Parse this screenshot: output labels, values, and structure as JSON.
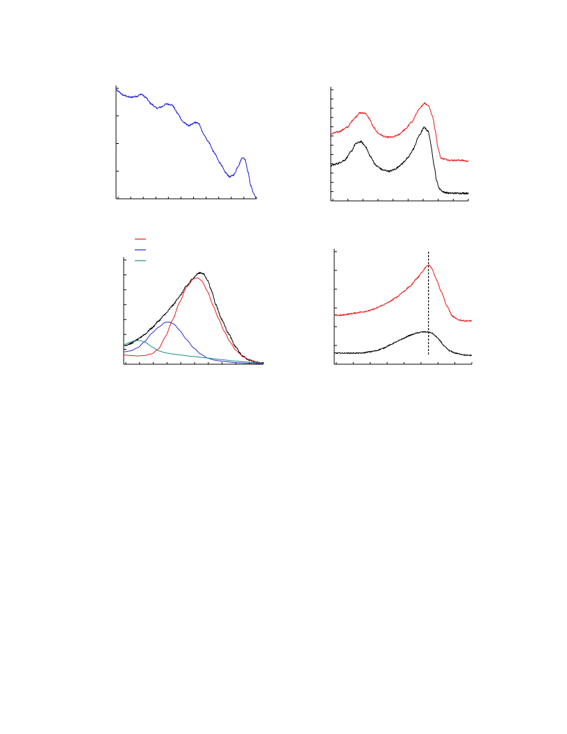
{
  "colors": {
    "blue": "#1414dc",
    "red": "#e81818",
    "black": "#000000",
    "fit_blue": "#2828e0",
    "teal": "#1a8c82",
    "axis": "#000000",
    "background": "#ffffff"
  },
  "chart_data": [
    {
      "id": "panel-top-left",
      "type": "line",
      "title": "",
      "xlabel": "",
      "ylabel": "",
      "xlim": [
        0,
        1
      ],
      "ylim": [
        0,
        1
      ],
      "grid": false,
      "series": [
        {
          "color_key": "blue",
          "noise": 0.007,
          "x": [
            0,
            0.02,
            0.05,
            0.1,
            0.15,
            0.18,
            0.21,
            0.25,
            0.29,
            0.32,
            0.36,
            0.4,
            0.44,
            0.48,
            0.52,
            0.54,
            0.56,
            0.59,
            0.62,
            0.66,
            0.7,
            0.74,
            0.78,
            0.81,
            0.84,
            0.87,
            0.9,
            0.92,
            0.94,
            0.96,
            0.98,
            1.0
          ],
          "y": [
            1.0,
            0.98,
            0.95,
            0.93,
            0.94,
            0.96,
            0.93,
            0.87,
            0.83,
            0.84,
            0.87,
            0.86,
            0.78,
            0.7,
            0.67,
            0.68,
            0.7,
            0.69,
            0.6,
            0.52,
            0.42,
            0.33,
            0.24,
            0.2,
            0.22,
            0.3,
            0.38,
            0.36,
            0.25,
            0.12,
            0.05,
            0.0
          ]
        }
      ],
      "y_ticks": 5,
      "x_ticks": 12
    },
    {
      "id": "panel-top-right",
      "type": "line",
      "title": "",
      "xlabel": "",
      "ylabel": "",
      "xlim": [
        0,
        1
      ],
      "ylim": [
        0,
        1
      ],
      "grid": false,
      "series": [
        {
          "color_key": "red",
          "noise": 0.007,
          "x": [
            0,
            0.06,
            0.12,
            0.17,
            0.21,
            0.25,
            0.28,
            0.31,
            0.35,
            0.4,
            0.45,
            0.49,
            0.54,
            0.59,
            0.64,
            0.68,
            0.71,
            0.74,
            0.76,
            0.78,
            0.8,
            0.83,
            0.87,
            0.91,
            0.95,
            1.0
          ],
          "y": [
            0.61,
            0.63,
            0.67,
            0.75,
            0.8,
            0.8,
            0.75,
            0.67,
            0.61,
            0.58,
            0.58,
            0.6,
            0.65,
            0.72,
            0.83,
            0.89,
            0.87,
            0.77,
            0.64,
            0.48,
            0.39,
            0.38,
            0.37,
            0.37,
            0.37,
            0.36
          ]
        },
        {
          "color_key": "black",
          "noise": 0.008,
          "x": [
            0,
            0.05,
            0.1,
            0.15,
            0.18,
            0.22,
            0.25,
            0.29,
            0.33,
            0.38,
            0.43,
            0.47,
            0.51,
            0.56,
            0.6,
            0.64,
            0.68,
            0.71,
            0.73,
            0.75,
            0.77,
            0.79,
            0.82,
            0.86,
            0.9,
            0.95,
            1.0
          ],
          "y": [
            0.32,
            0.34,
            0.37,
            0.45,
            0.52,
            0.54,
            0.5,
            0.4,
            0.32,
            0.28,
            0.27,
            0.29,
            0.33,
            0.39,
            0.47,
            0.59,
            0.67,
            0.63,
            0.5,
            0.33,
            0.18,
            0.11,
            0.08,
            0.07,
            0.07,
            0.07,
            0.07
          ]
        }
      ],
      "y_ticks": 13,
      "x_ticks": 10
    },
    {
      "id": "panel-bottom-left",
      "type": "line",
      "title": "",
      "xlabel": "",
      "ylabel": "",
      "xlim": [
        0,
        1
      ],
      "ylim": [
        0,
        1
      ],
      "grid": false,
      "legend": {
        "placement": "top-left",
        "entries": [
          {
            "color_key": "red",
            "label": ""
          },
          {
            "color_key": "fit_blue",
            "label": ""
          },
          {
            "color_key": "teal",
            "label": ""
          }
        ]
      },
      "series": [
        {
          "color_key": "black",
          "noise": 0.008,
          "x": [
            0,
            0.05,
            0.1,
            0.15,
            0.2,
            0.25,
            0.3,
            0.35,
            0.4,
            0.45,
            0.5,
            0.53,
            0.55,
            0.57,
            0.6,
            0.63,
            0.66,
            0.7,
            0.75,
            0.8,
            0.85,
            0.9,
            0.95,
            1.0
          ],
          "y": [
            0.18,
            0.2,
            0.24,
            0.29,
            0.35,
            0.42,
            0.49,
            0.57,
            0.66,
            0.76,
            0.84,
            0.88,
            0.89,
            0.88,
            0.82,
            0.71,
            0.58,
            0.44,
            0.3,
            0.17,
            0.08,
            0.04,
            0.02,
            0.01
          ]
        },
        {
          "color_key": "red",
          "noise": 0,
          "x": [
            0,
            0.05,
            0.1,
            0.15,
            0.2,
            0.25,
            0.3,
            0.35,
            0.4,
            0.45,
            0.5,
            0.53,
            0.56,
            0.6,
            0.64,
            0.68,
            0.72,
            0.76,
            0.8,
            0.85,
            0.9,
            0.95,
            1.0
          ],
          "y": [
            0.09,
            0.085,
            0.08,
            0.085,
            0.1,
            0.15,
            0.27,
            0.43,
            0.6,
            0.75,
            0.83,
            0.84,
            0.81,
            0.71,
            0.57,
            0.44,
            0.32,
            0.22,
            0.14,
            0.08,
            0.04,
            0.02,
            0.01
          ]
        },
        {
          "color_key": "fit_blue",
          "noise": 0,
          "x": [
            0,
            0.05,
            0.1,
            0.15,
            0.2,
            0.25,
            0.3,
            0.33,
            0.36,
            0.4,
            0.45,
            0.5,
            0.55,
            0.6,
            0.65,
            0.7,
            0.8,
            0.9,
            1.0
          ],
          "y": [
            0.12,
            0.13,
            0.16,
            0.22,
            0.3,
            0.36,
            0.41,
            0.41,
            0.39,
            0.33,
            0.24,
            0.16,
            0.1,
            0.06,
            0.04,
            0.03,
            0.015,
            0.01,
            0.005
          ]
        },
        {
          "color_key": "teal",
          "noise": 0,
          "x": [
            0,
            0.04,
            0.08,
            0.12,
            0.16,
            0.2,
            0.25,
            0.3,
            0.35,
            0.4,
            0.5,
            0.6,
            0.7,
            0.8,
            0.9,
            1.0
          ],
          "y": [
            0.19,
            0.21,
            0.23,
            0.23,
            0.21,
            0.17,
            0.13,
            0.11,
            0.1,
            0.09,
            0.075,
            0.06,
            0.045,
            0.03,
            0.02,
            0.01
          ]
        }
      ],
      "y_ticks": 8,
      "x_ticks": 11
    },
    {
      "id": "panel-bottom-right",
      "type": "line",
      "title": "",
      "xlabel": "",
      "ylabel": "",
      "xlim": [
        0,
        1
      ],
      "ylim": [
        0,
        1
      ],
      "grid": false,
      "vertical_marker": {
        "x": 0.685,
        "style": "dashed",
        "color_key": "black"
      },
      "series": [
        {
          "color_key": "red",
          "noise": 0.006,
          "x": [
            0,
            0.05,
            0.1,
            0.15,
            0.2,
            0.25,
            0.3,
            0.35,
            0.4,
            0.45,
            0.5,
            0.55,
            0.6,
            0.64,
            0.67,
            0.69,
            0.71,
            0.74,
            0.78,
            0.82,
            0.86,
            0.9,
            0.95,
            1.0
          ],
          "y": [
            0.44,
            0.44,
            0.45,
            0.46,
            0.47,
            0.48,
            0.5,
            0.53,
            0.56,
            0.6,
            0.65,
            0.7,
            0.77,
            0.83,
            0.88,
            0.89,
            0.86,
            0.77,
            0.65,
            0.52,
            0.43,
            0.4,
            0.39,
            0.39
          ]
        },
        {
          "color_key": "black",
          "noise": 0.005,
          "x": [
            0,
            0.05,
            0.1,
            0.15,
            0.2,
            0.25,
            0.3,
            0.35,
            0.4,
            0.45,
            0.5,
            0.55,
            0.6,
            0.64,
            0.68,
            0.71,
            0.74,
            0.77,
            0.8,
            0.84,
            0.88,
            0.92,
            0.96,
            1.0
          ],
          "y": [
            0.1,
            0.1,
            0.1,
            0.1,
            0.1,
            0.11,
            0.12,
            0.14,
            0.17,
            0.2,
            0.23,
            0.26,
            0.28,
            0.29,
            0.29,
            0.28,
            0.25,
            0.21,
            0.16,
            0.12,
            0.1,
            0.09,
            0.08,
            0.08
          ]
        }
      ],
      "y_ticks": 7,
      "x_ticks": 9
    }
  ]
}
